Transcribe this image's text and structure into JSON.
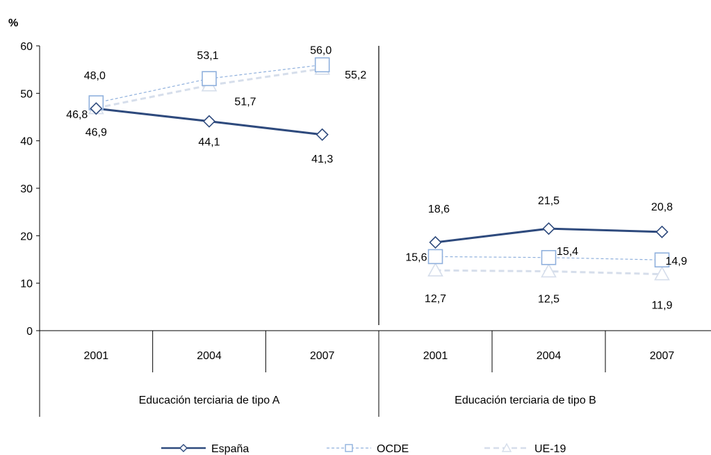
{
  "chart_data": {
    "type": "line",
    "y_unit_label": "%",
    "ylim": [
      0,
      60
    ],
    "yticks": [
      "0",
      "10",
      "20",
      "30",
      "40",
      "50",
      "60"
    ],
    "grid": false,
    "legend_position": "bottom",
    "groups": [
      {
        "label": "Educación terciaria de tipo A",
        "categories": [
          "2001",
          "2004",
          "2007"
        ],
        "series": [
          {
            "name": "España",
            "values": [
              46.8,
              44.1,
              41.3
            ],
            "labels": [
              "46,8",
              "44,1",
              "41,3"
            ]
          },
          {
            "name": "OCDE",
            "values": [
              48.0,
              53.1,
              56.0
            ],
            "labels": [
              "48,0",
              "53,1",
              "56,0"
            ]
          },
          {
            "name": "UE-19",
            "values": [
              46.9,
              51.7,
              55.2
            ],
            "labels": [
              "46,9",
              "51,7",
              "55,2"
            ]
          }
        ]
      },
      {
        "label": "Educación terciaria de tipo B",
        "categories": [
          "2001",
          "2004",
          "2007"
        ],
        "series": [
          {
            "name": "España",
            "values": [
              18.6,
              21.5,
              20.8
            ],
            "labels": [
              "18,6",
              "21,5",
              "20,8"
            ]
          },
          {
            "name": "OCDE",
            "values": [
              15.6,
              15.4,
              14.9
            ],
            "labels": [
              "15,6",
              "15,4",
              "14,9"
            ]
          },
          {
            "name": "UE-19",
            "values": [
              12.7,
              12.5,
              11.9
            ],
            "labels": [
              "12,7",
              "12,5",
              "11,9"
            ]
          }
        ]
      }
    ],
    "series_styles": [
      {
        "name": "España",
        "color": "#2e4a7d",
        "marker": "diamond",
        "dash": "none"
      },
      {
        "name": "OCDE",
        "color": "#8fb0dd",
        "marker": "square",
        "dash": "4,3"
      },
      {
        "name": "UE-19",
        "color": "#d6deeb",
        "marker": "triangle",
        "dash": "8,5"
      }
    ]
  }
}
